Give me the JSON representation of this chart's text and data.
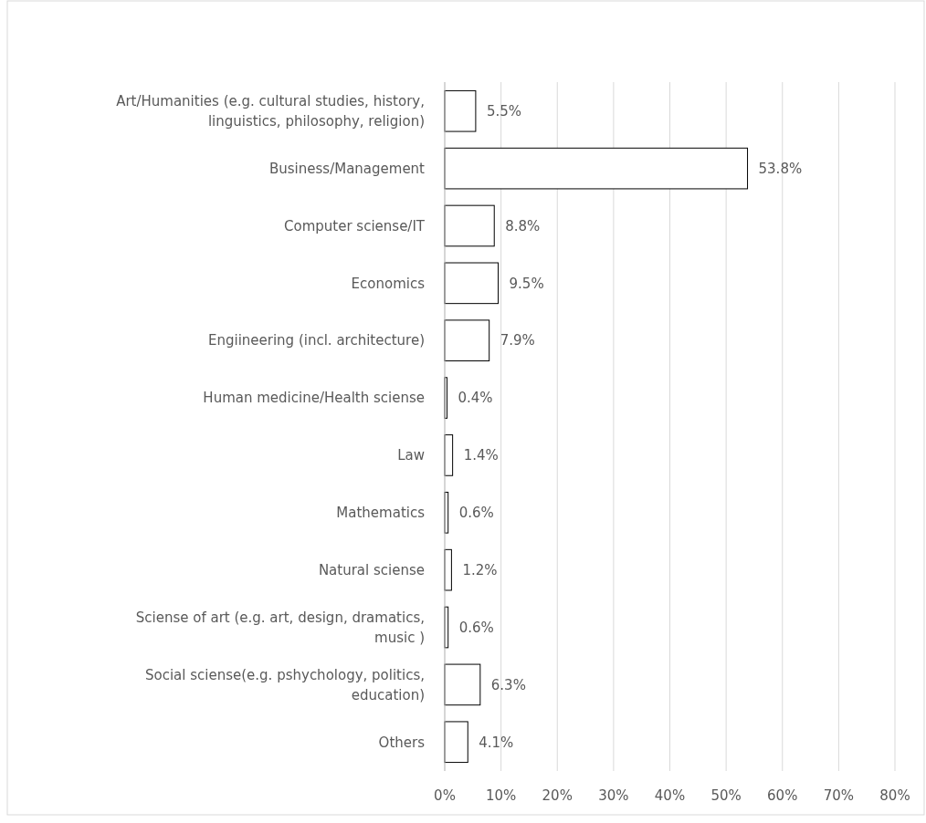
{
  "chart_data": {
    "type": "bar",
    "orientation": "horizontal",
    "categories": [
      "Art/Humanities (e.g. cultural studies, history, linguistics, philosophy, religion)",
      "Business/Management",
      "Computer sciense/IT",
      "Economics",
      "Engiineering (incl. architecture)",
      "Human medicine/Health sciense",
      "Law",
      "Mathematics",
      "Natural sciense",
      "Sciense of art (e.g. art, design, dramatics, music )",
      "Social sciense(e.g. pshychology, politics, education)",
      "Others"
    ],
    "values": [
      5.5,
      53.8,
      8.8,
      9.5,
      7.9,
      0.4,
      1.4,
      0.6,
      1.2,
      0.6,
      6.3,
      4.1
    ],
    "value_labels": [
      "5.5%",
      "53.8%",
      "8.8%",
      "9.5%",
      "7.9%",
      "0.4%",
      "1.4%",
      "0.6%",
      "1.2%",
      "0.6%",
      "6.3%",
      "4.1%"
    ],
    "color": "#ffffff",
    "xlim": [
      0,
      80
    ],
    "xticks": [
      {
        "value": 0,
        "label": "0%"
      },
      {
        "value": 10,
        "label": "10%"
      },
      {
        "value": 20,
        "label": "20%"
      },
      {
        "value": 30,
        "label": "30%"
      },
      {
        "value": 40,
        "label": "40%"
      },
      {
        "value": 50,
        "label": "50%"
      },
      {
        "value": 60,
        "label": "60%"
      },
      {
        "value": 70,
        "label": "70%"
      },
      {
        "value": 80,
        "label": "80%"
      }
    ],
    "grid": "x"
  }
}
